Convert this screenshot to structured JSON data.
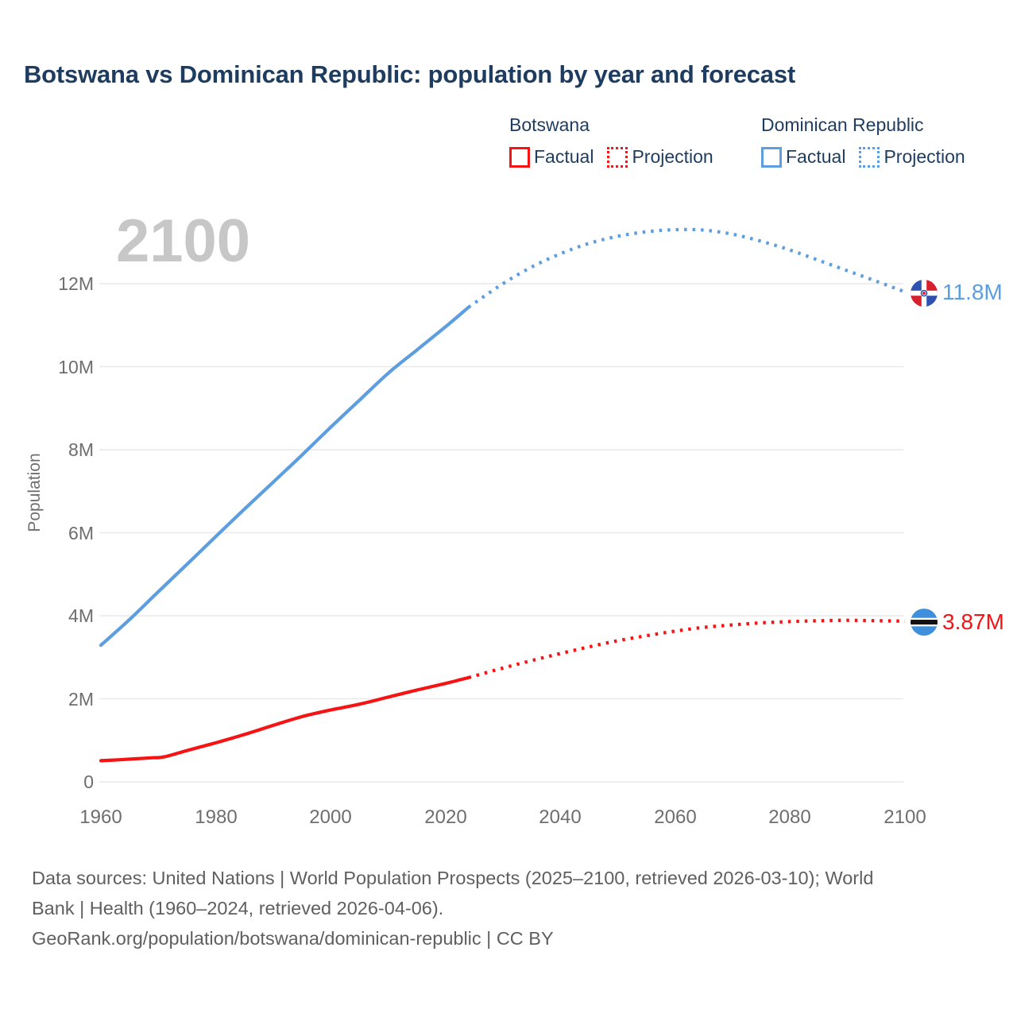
{
  "title": "Botswana vs Dominican Republic: population by year and forecast",
  "watermark_year": "2100",
  "legend": {
    "botswana": {
      "label": "Botswana",
      "factual": "Factual",
      "projection": "Projection"
    },
    "dominican_republic": {
      "label": "Dominican Republic",
      "factual": "Factual",
      "projection": "Projection"
    }
  },
  "y_axis": {
    "label": "Population",
    "ticks": [
      "0",
      "2M",
      "4M",
      "6M",
      "8M",
      "10M",
      "12M"
    ]
  },
  "x_axis": {
    "ticks": [
      "1960",
      "1980",
      "2000",
      "2020",
      "2040",
      "2060",
      "2080",
      "2100"
    ]
  },
  "end_labels": {
    "dominican_republic": "11.8M",
    "botswana": "3.87M"
  },
  "footer": {
    "line1": "Data sources: United Nations | World Population Prospects (2025–2100, retrieved 2026-03-10); World",
    "line2": "Bank | Health (1960–2024, retrieved 2026-04-06).",
    "line3": "GeoRank.org/population/botswana/dominican-republic | CC BY"
  },
  "colors": {
    "botswana": "#f61313",
    "dominican_republic": "#5d9ee0",
    "title_text": "#1e3c5f",
    "grid": "#e9e9e9",
    "axis_text": "#6e6e6e",
    "watermark": "#c7c7c7",
    "footer_text": "#5f5f5f",
    "flag_botswana_blue": "#3f8fdc",
    "flag_dr_blue": "#2f52b0",
    "flag_dr_red": "#d81f2e"
  },
  "chart_data": {
    "type": "line",
    "title": "Botswana vs Dominican Republic: population by year and forecast",
    "xlabel": "",
    "ylabel": "Population",
    "unit": "millions",
    "xlim": [
      1960,
      2100
    ],
    "ylim": [
      0,
      13.6
    ],
    "grid": "horizontal-only",
    "legend_position": "top-right",
    "y_ticks_values": [
      0,
      2,
      4,
      6,
      8,
      10,
      12
    ],
    "x_ticks_values": [
      1960,
      1980,
      2000,
      2020,
      2040,
      2060,
      2080,
      2100
    ],
    "series": [
      {
        "name": "Dominican Republic Factual",
        "color_key": "dominican_republic",
        "style": "solid",
        "points": [
          [
            1960,
            3.29
          ],
          [
            1965,
            3.91
          ],
          [
            1970,
            4.58
          ],
          [
            1975,
            5.24
          ],
          [
            1980,
            5.91
          ],
          [
            1985,
            6.57
          ],
          [
            1990,
            7.22
          ],
          [
            1995,
            7.87
          ],
          [
            2000,
            8.54
          ],
          [
            2005,
            9.19
          ],
          [
            2010,
            9.84
          ],
          [
            2015,
            10.4
          ],
          [
            2020,
            10.96
          ],
          [
            2024,
            11.43
          ]
        ]
      },
      {
        "name": "Dominican Republic Projection",
        "color_key": "dominican_republic",
        "style": "dotted",
        "points": [
          [
            2024,
            11.43
          ],
          [
            2030,
            12.0
          ],
          [
            2035,
            12.4
          ],
          [
            2040,
            12.72
          ],
          [
            2045,
            12.97
          ],
          [
            2050,
            13.14
          ],
          [
            2055,
            13.25
          ],
          [
            2060,
            13.3
          ],
          [
            2065,
            13.29
          ],
          [
            2070,
            13.19
          ],
          [
            2075,
            13.02
          ],
          [
            2080,
            12.81
          ],
          [
            2085,
            12.56
          ],
          [
            2090,
            12.31
          ],
          [
            2095,
            12.06
          ],
          [
            2100,
            11.8
          ]
        ]
      },
      {
        "name": "Botswana Factual",
        "color_key": "botswana",
        "style": "solid",
        "points": [
          [
            1960,
            0.51
          ],
          [
            1963,
            0.53
          ],
          [
            1966,
            0.555
          ],
          [
            1969,
            0.58
          ],
          [
            1971,
            0.6
          ],
          [
            1975,
            0.755
          ],
          [
            1980,
            0.94
          ],
          [
            1985,
            1.14
          ],
          [
            1990,
            1.36
          ],
          [
            1995,
            1.57
          ],
          [
            2000,
            1.73
          ],
          [
            2005,
            1.87
          ],
          [
            2010,
            2.04
          ],
          [
            2015,
            2.21
          ],
          [
            2020,
            2.37
          ],
          [
            2024,
            2.51
          ]
        ]
      },
      {
        "name": "Botswana Projection",
        "color_key": "botswana",
        "style": "dotted",
        "points": [
          [
            2024,
            2.51
          ],
          [
            2030,
            2.74
          ],
          [
            2035,
            2.92
          ],
          [
            2040,
            3.09
          ],
          [
            2045,
            3.25
          ],
          [
            2050,
            3.4
          ],
          [
            2055,
            3.52
          ],
          [
            2060,
            3.63
          ],
          [
            2065,
            3.72
          ],
          [
            2070,
            3.78
          ],
          [
            2075,
            3.83
          ],
          [
            2080,
            3.86
          ],
          [
            2085,
            3.88
          ],
          [
            2090,
            3.89
          ],
          [
            2095,
            3.88
          ],
          [
            2100,
            3.87
          ]
        ]
      }
    ],
    "end_markers": [
      {
        "series": "Dominican Republic",
        "year": 2100,
        "value": 11.8,
        "label": "11.8M",
        "flag": "dominican-republic"
      },
      {
        "series": "Botswana",
        "year": 2100,
        "value": 3.87,
        "label": "3.87M",
        "flag": "botswana"
      }
    ]
  }
}
